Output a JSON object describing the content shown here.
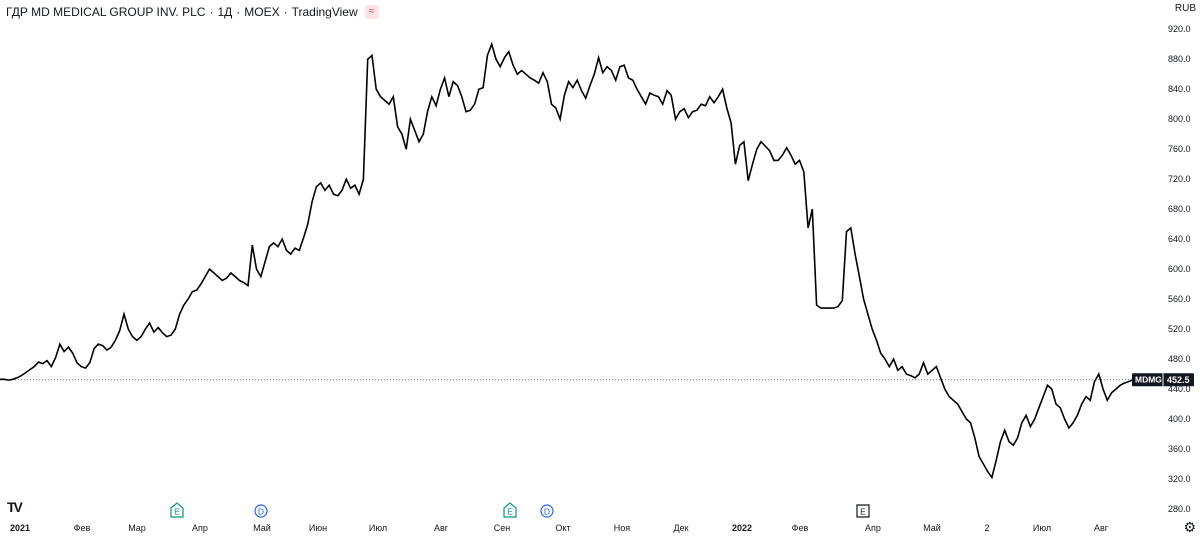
{
  "header": {
    "symbol": "ГДР MD MEDICAL GROUP INV. PLC",
    "interval": "1Д",
    "exchange": "MOEX",
    "source": "TradingView",
    "icon": "wave-icon"
  },
  "currency": "RUB",
  "last_price_label": {
    "ticker": "MDMG",
    "value": "452.5"
  },
  "colors": {
    "line": "#000000",
    "label_bg": "#131722",
    "grid_dot": "#6a6d78",
    "dividend": "#2962ff",
    "earnings": "#089981"
  },
  "chart_data": {
    "type": "line",
    "series": [
      {
        "values": [
          453,
          453,
          452,
          453,
          455,
          458,
          462,
          466,
          470,
          476,
          474,
          478,
          470,
          482,
          500,
          490,
          496,
          488,
          475,
          470,
          468,
          475,
          494,
          500,
          498,
          492,
          496,
          505,
          518,
          540,
          520,
          510,
          505,
          510,
          520,
          528,
          516,
          522,
          515,
          510,
          512,
          520,
          540,
          552,
          560,
          570,
          572,
          580,
          590,
          600,
          595,
          590,
          585,
          588,
          595,
          590,
          585,
          582,
          578,
          632,
          600,
          590,
          610,
          630,
          635,
          630,
          640,
          625,
          620,
          628,
          625,
          642,
          660,
          690,
          710,
          715,
          705,
          712,
          700,
          698,
          705,
          720,
          708,
          712,
          700,
          720,
          880,
          885,
          840,
          830,
          825,
          820,
          830,
          790,
          780,
          760,
          800,
          785,
          770,
          780,
          810,
          830,
          818,
          840,
          855,
          830,
          850,
          845,
          830,
          810,
          812,
          820,
          840,
          842,
          885,
          900,
          880,
          870,
          882,
          890,
          872,
          860,
          865,
          860,
          855,
          852,
          848,
          862,
          850,
          820,
          815,
          800,
          832,
          850,
          842,
          852,
          838,
          828,
          845,
          860,
          882,
          862,
          870,
          865,
          852,
          870,
          872,
          855,
          852,
          840,
          830,
          820,
          835,
          832,
          830,
          820,
          838,
          832,
          800,
          810,
          814,
          802,
          810,
          812,
          820,
          818,
          830,
          822,
          830,
          840,
          815,
          795,
          740,
          765,
          770,
          718,
          740,
          760,
          770,
          764,
          758,
          745,
          745,
          752,
          762,
          752,
          740,
          745,
          730,
          655,
          680,
          552,
          548,
          548,
          548,
          548,
          550,
          558,
          650,
          655,
          620,
          590,
          560,
          540,
          520,
          505,
          488,
          480,
          470,
          480,
          465,
          470,
          460,
          458,
          455,
          460,
          475,
          460,
          465,
          470,
          455,
          440,
          430,
          425,
          420,
          410,
          400,
          395,
          375,
          350,
          340,
          330,
          322,
          345,
          370,
          385,
          370,
          365,
          375,
          395,
          405,
          390,
          400,
          415,
          430,
          445,
          440,
          420,
          415,
          400,
          388,
          395,
          405,
          420,
          430,
          425,
          450,
          460,
          440,
          425,
          435,
          440,
          445,
          448,
          450,
          452.5
        ]
      }
    ],
    "x_ticks": [
      {
        "label": "2021",
        "major": true
      },
      {
        "label": "Фев"
      },
      {
        "label": "Мар"
      },
      {
        "label": "Апр"
      },
      {
        "label": "Май"
      },
      {
        "label": "Июн"
      },
      {
        "label": "Июл"
      },
      {
        "label": "Авг"
      },
      {
        "label": "Сен"
      },
      {
        "label": "Окт"
      },
      {
        "label": "Ноя"
      },
      {
        "label": "Дек"
      },
      {
        "label": "2022",
        "major": true
      },
      {
        "label": "Фев"
      },
      {
        "label": "Апр"
      },
      {
        "label": "Май"
      },
      {
        "label": "2"
      },
      {
        "label": "Июл"
      },
      {
        "label": "Авг"
      }
    ],
    "y_ticks": [
      "280.0",
      "320.0",
      "360.0",
      "400.0",
      "440.0",
      "480.0",
      "520.0",
      "560.0",
      "600.0",
      "640.0",
      "680.0",
      "720.0",
      "760.0",
      "800.0",
      "840.0",
      "880.0",
      "920.0"
    ],
    "ylim": [
      272,
      935
    ],
    "events": [
      {
        "type": "earnings",
        "label": "E"
      },
      {
        "type": "dividend",
        "label": "D"
      },
      {
        "type": "earnings",
        "label": "E"
      },
      {
        "type": "dividend",
        "label": "D"
      },
      {
        "type": "earnings",
        "label": "E"
      }
    ],
    "grid": false
  }
}
